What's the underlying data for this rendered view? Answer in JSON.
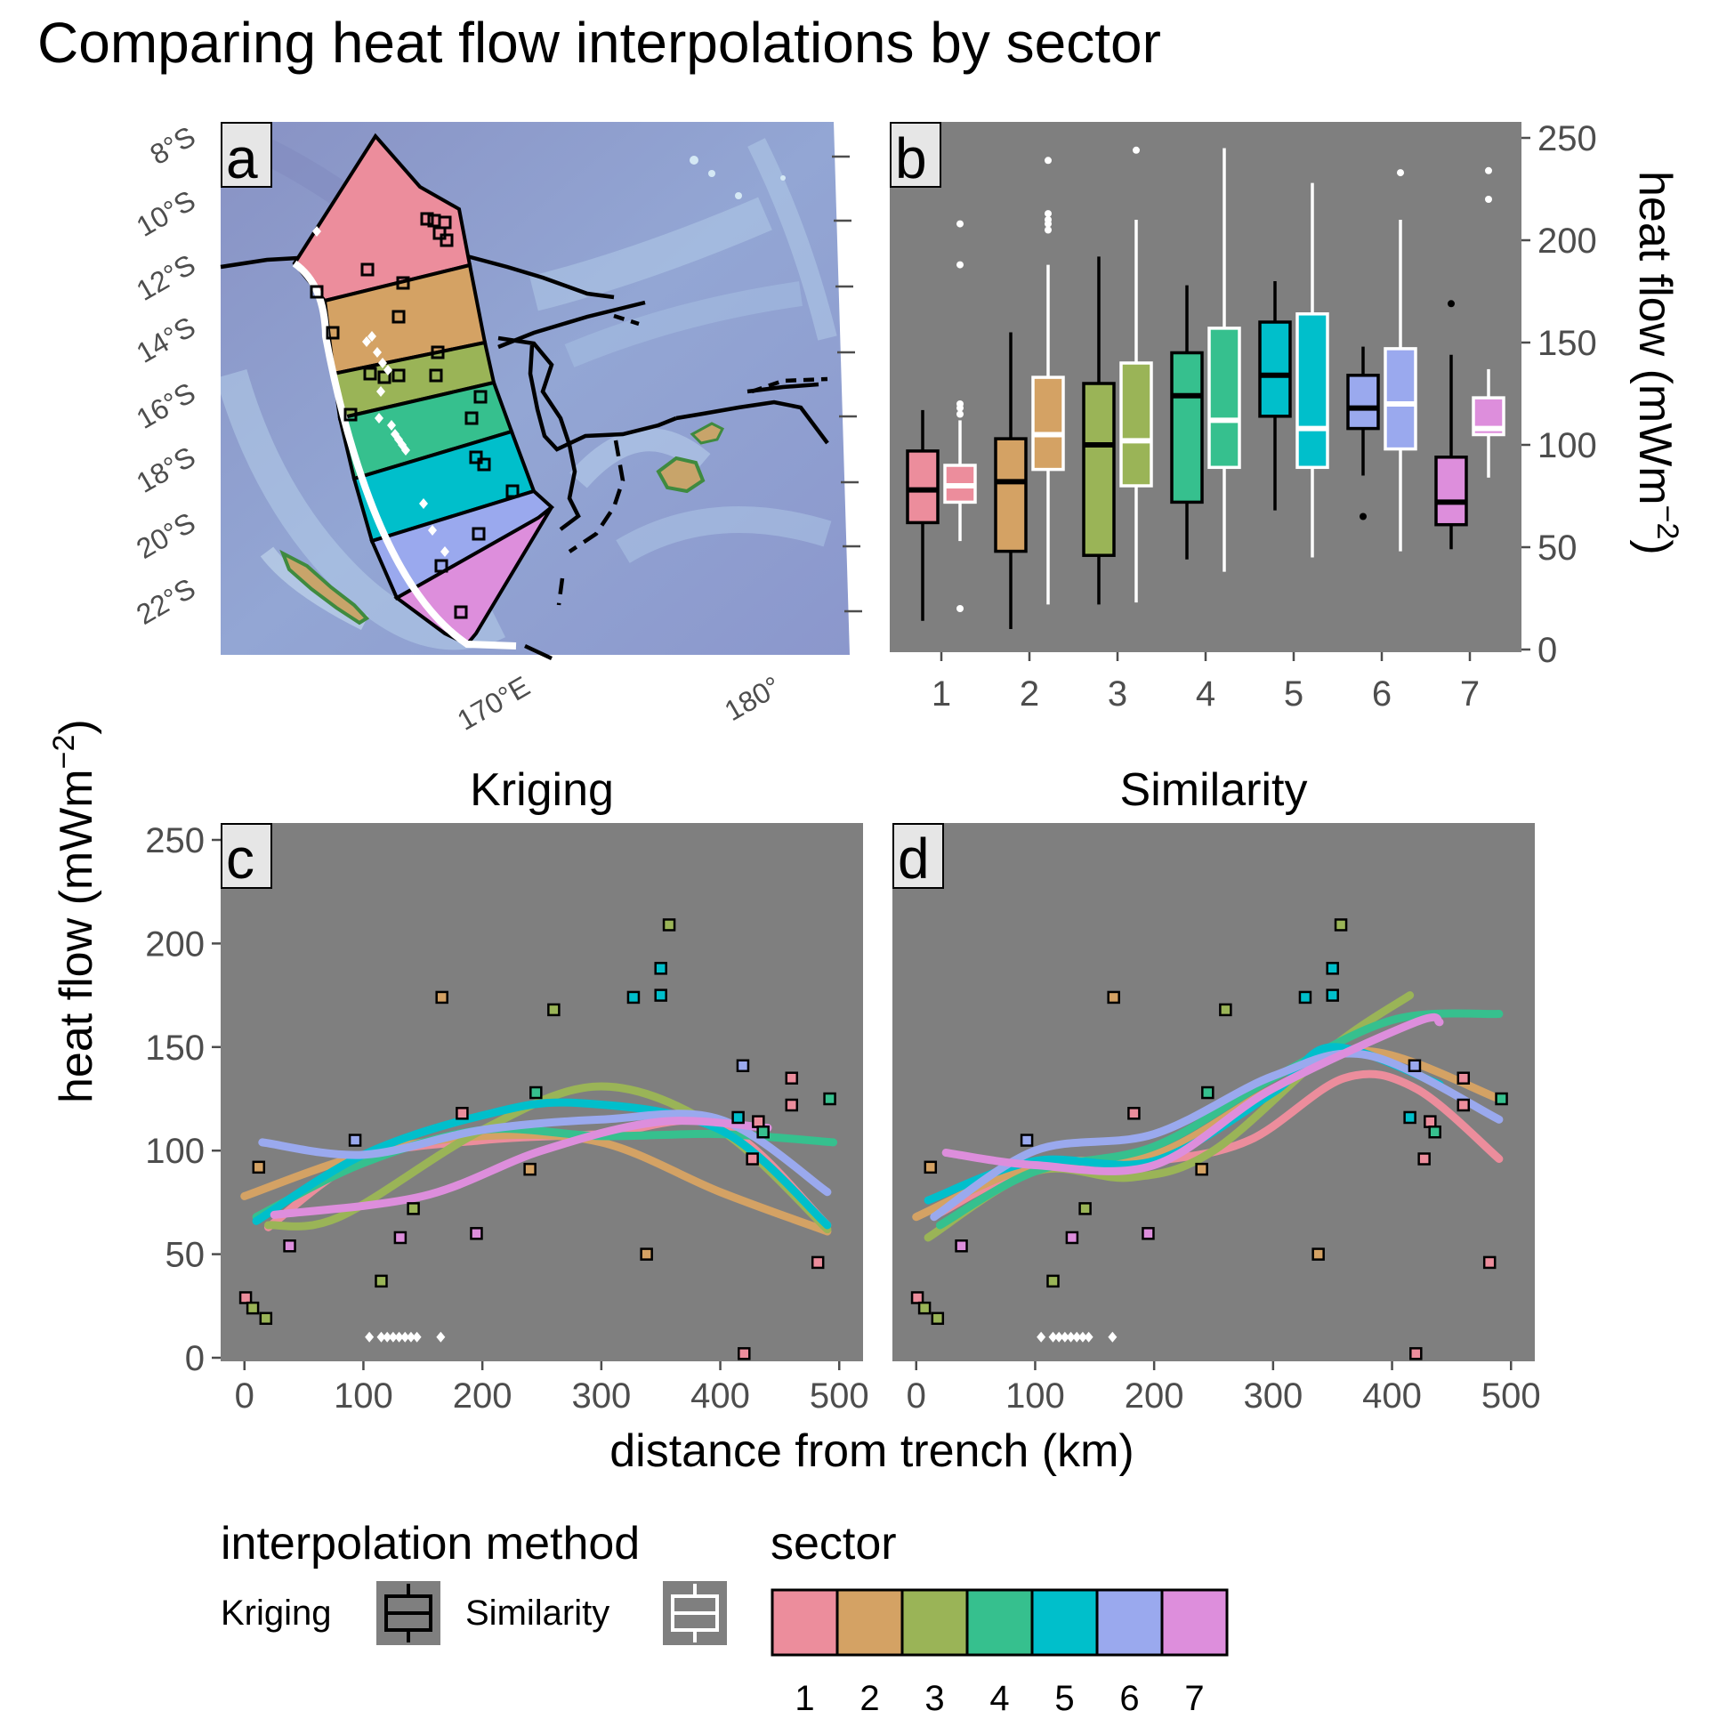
{
  "title": "Comparing heat flow interpolations by sector",
  "colors": {
    "panel_bg": "#7f7f7f",
    "sectors": [
      "#ec8d9c",
      "#d4a264",
      "#9ab457",
      "#36c08e",
      "#00bfcb",
      "#9aa9ee",
      "#dd8edc"
    ],
    "kriging_stroke": "#000000",
    "similarity_stroke": "#ffffff"
  },
  "map_panel": {
    "tag": "a",
    "lat_labels": [
      "8°S",
      "10°S",
      "12°S",
      "14°S",
      "16°S",
      "18°S",
      "20°S",
      "22°S"
    ],
    "lon_labels": [
      "170°E",
      "180°"
    ],
    "legend_icons": {
      "sector_polygon": "sector-polygon-icon",
      "site": "heat-flow-site-icon",
      "trench": "trench-line-icon"
    }
  },
  "chart_data": [
    {
      "panel": "b",
      "type": "box",
      "categories": [
        "1",
        "2",
        "3",
        "4",
        "5",
        "6",
        "7"
      ],
      "ylabel": "heat flow (mWm",
      "ylabel_sup": "−2",
      "ylabel_close": ")",
      "ylim": [
        0,
        250
      ],
      "yticks": [
        0,
        50,
        100,
        150,
        200,
        250
      ],
      "axis_side": "right",
      "series": [
        {
          "name": "Kriging",
          "boxes": [
            {
              "lower": 14,
              "q1": 62,
              "median": 78,
              "q3": 97,
              "upper": 117,
              "outliers": []
            },
            {
              "lower": 10,
              "q1": 48,
              "median": 82,
              "q3": 103,
              "upper": 155,
              "outliers": []
            },
            {
              "lower": 22,
              "q1": 46,
              "median": 100,
              "q3": 130,
              "upper": 192,
              "outliers": []
            },
            {
              "lower": 44,
              "q1": 72,
              "median": 124,
              "q3": 145,
              "upper": 178,
              "outliers": []
            },
            {
              "lower": 68,
              "q1": 114,
              "median": 134,
              "q3": 160,
              "upper": 180,
              "outliers": []
            },
            {
              "lower": 85,
              "q1": 108,
              "median": 118,
              "q3": 134,
              "upper": 148,
              "outliers": [
                65
              ]
            },
            {
              "lower": 49,
              "q1": 61,
              "median": 72,
              "q3": 94,
              "upper": 144,
              "outliers": [
                169
              ]
            }
          ]
        },
        {
          "name": "Similarity",
          "boxes": [
            {
              "lower": 53,
              "q1": 72,
              "median": 80,
              "q3": 90,
              "upper": 112,
              "outliers": [
                20,
                115,
                118,
                120,
                188,
                208
              ]
            },
            {
              "lower": 22,
              "q1": 88,
              "median": 105,
              "q3": 133,
              "upper": 188,
              "outliers": [
                205,
                208,
                210,
                213,
                239
              ]
            },
            {
              "lower": 23,
              "q1": 80,
              "median": 102,
              "q3": 140,
              "upper": 210,
              "outliers": [
                244
              ]
            },
            {
              "lower": 38,
              "q1": 89,
              "median": 112,
              "q3": 157,
              "upper": 245,
              "outliers": []
            },
            {
              "lower": 45,
              "q1": 89,
              "median": 108,
              "q3": 164,
              "upper": 228,
              "outliers": []
            },
            {
              "lower": 48,
              "q1": 98,
              "median": 120,
              "q3": 147,
              "upper": 210,
              "outliers": [
                233
              ]
            },
            {
              "lower": 84,
              "q1": 105,
              "median": 108,
              "q3": 123,
              "upper": 137,
              "outliers": [
                220,
                234
              ]
            }
          ]
        }
      ]
    },
    {
      "panel": "c",
      "type": "scatter+line",
      "facet_title": "Kriging",
      "xlim": [
        -20,
        520
      ],
      "ylim": [
        0,
        250
      ],
      "xticks": [
        0,
        100,
        200,
        300,
        400,
        500
      ],
      "yticks": [
        0,
        50,
        100,
        150,
        200,
        250
      ],
      "points": [
        {
          "x": 1,
          "y": 29,
          "sector": 1
        },
        {
          "x": 7,
          "y": 24,
          "sector": 3
        },
        {
          "x": 12,
          "y": 92,
          "sector": 2
        },
        {
          "x": 18,
          "y": 19,
          "sector": 3
        },
        {
          "x": 38,
          "y": 54,
          "sector": 7
        },
        {
          "x": 93,
          "y": 105,
          "sector": 6
        },
        {
          "x": 115,
          "y": 37,
          "sector": 3
        },
        {
          "x": 131,
          "y": 58,
          "sector": 7
        },
        {
          "x": 142,
          "y": 72,
          "sector": 3
        },
        {
          "x": 166,
          "y": 174,
          "sector": 2
        },
        {
          "x": 183,
          "y": 118,
          "sector": 1
        },
        {
          "x": 195,
          "y": 60,
          "sector": 7
        },
        {
          "x": 240,
          "y": 91,
          "sector": 2
        },
        {
          "x": 245,
          "y": 128,
          "sector": 4
        },
        {
          "x": 260,
          "y": 168,
          "sector": 3
        },
        {
          "x": 327,
          "y": 174,
          "sector": 5
        },
        {
          "x": 338,
          "y": 50,
          "sector": 2
        },
        {
          "x": 350,
          "y": 188,
          "sector": 5
        },
        {
          "x": 350,
          "y": 175,
          "sector": 5
        },
        {
          "x": 357,
          "y": 209,
          "sector": 3
        },
        {
          "x": 415,
          "y": 116,
          "sector": 5
        },
        {
          "x": 419,
          "y": 141,
          "sector": 6
        },
        {
          "x": 420,
          "y": 2,
          "sector": 1
        },
        {
          "x": 427,
          "y": 96,
          "sector": 1
        },
        {
          "x": 432,
          "y": 114,
          "sector": 1
        },
        {
          "x": 436,
          "y": 109,
          "sector": 4
        },
        {
          "x": 460,
          "y": 135,
          "sector": 1
        },
        {
          "x": 460,
          "y": 122,
          "sector": 1
        },
        {
          "x": 482,
          "y": 46,
          "sector": 1
        },
        {
          "x": 492,
          "y": 125,
          "sector": 4
        }
      ],
      "white_points": {
        "x": [
          105,
          115,
          120,
          125,
          130,
          135,
          140,
          145,
          165
        ],
        "y": 10
      },
      "series": [
        {
          "sector": 1,
          "x": [
            20,
            100,
            200,
            300,
            400,
            490
          ],
          "y": [
            63,
            96,
            105,
            108,
            112,
            64
          ]
        },
        {
          "sector": 2,
          "x": [
            0,
            100,
            200,
            300,
            400,
            490
          ],
          "y": [
            78,
            98,
            107,
            104,
            80,
            61
          ]
        },
        {
          "sector": 3,
          "x": [
            20,
            80,
            200,
            300,
            400,
            490
          ],
          "y": [
            64,
            68,
            110,
            131,
            110,
            62
          ]
        },
        {
          "sector": 4,
          "x": [
            10,
            100,
            200,
            300,
            400,
            495
          ],
          "y": [
            68,
            94,
            110,
            107,
            108,
            104
          ]
        },
        {
          "sector": 5,
          "x": [
            10,
            100,
            200,
            280,
            400,
            490
          ],
          "y": [
            66,
            98,
            117,
            123,
            110,
            64
          ]
        },
        {
          "sector": 6,
          "x": [
            15,
            100,
            200,
            300,
            400,
            490
          ],
          "y": [
            104,
            98,
            110,
            115,
            115,
            80
          ]
        },
        {
          "sector": 7,
          "x": [
            25,
            150,
            250,
            350,
            440
          ],
          "y": [
            69,
            78,
            100,
            114,
            111
          ]
        }
      ]
    },
    {
      "panel": "d",
      "type": "scatter+line",
      "facet_title": "Similarity",
      "xlim": [
        -20,
        520
      ],
      "ylim": [
        0,
        250
      ],
      "xticks": [
        0,
        100,
        200,
        300,
        400,
        500
      ],
      "yticks": [
        0,
        50,
        100,
        150,
        200,
        250
      ],
      "points": [
        {
          "x": 1,
          "y": 29,
          "sector": 1
        },
        {
          "x": 7,
          "y": 24,
          "sector": 3
        },
        {
          "x": 12,
          "y": 92,
          "sector": 2
        },
        {
          "x": 18,
          "y": 19,
          "sector": 3
        },
        {
          "x": 38,
          "y": 54,
          "sector": 7
        },
        {
          "x": 93,
          "y": 105,
          "sector": 6
        },
        {
          "x": 115,
          "y": 37,
          "sector": 3
        },
        {
          "x": 131,
          "y": 58,
          "sector": 7
        },
        {
          "x": 142,
          "y": 72,
          "sector": 3
        },
        {
          "x": 166,
          "y": 174,
          "sector": 2
        },
        {
          "x": 183,
          "y": 118,
          "sector": 1
        },
        {
          "x": 195,
          "y": 60,
          "sector": 7
        },
        {
          "x": 240,
          "y": 91,
          "sector": 2
        },
        {
          "x": 245,
          "y": 128,
          "sector": 4
        },
        {
          "x": 260,
          "y": 168,
          "sector": 3
        },
        {
          "x": 327,
          "y": 174,
          "sector": 5
        },
        {
          "x": 338,
          "y": 50,
          "sector": 2
        },
        {
          "x": 350,
          "y": 188,
          "sector": 5
        },
        {
          "x": 350,
          "y": 175,
          "sector": 5
        },
        {
          "x": 357,
          "y": 209,
          "sector": 3
        },
        {
          "x": 415,
          "y": 116,
          "sector": 5
        },
        {
          "x": 419,
          "y": 141,
          "sector": 6
        },
        {
          "x": 420,
          "y": 2,
          "sector": 1
        },
        {
          "x": 427,
          "y": 96,
          "sector": 1
        },
        {
          "x": 432,
          "y": 114,
          "sector": 1
        },
        {
          "x": 436,
          "y": 109,
          "sector": 4
        },
        {
          "x": 460,
          "y": 135,
          "sector": 1
        },
        {
          "x": 460,
          "y": 122,
          "sector": 1
        },
        {
          "x": 482,
          "y": 46,
          "sector": 1
        },
        {
          "x": 492,
          "y": 125,
          "sector": 4
        }
      ],
      "white_points": {
        "x": [
          105,
          115,
          120,
          125,
          130,
          135,
          140,
          145,
          165
        ],
        "y": 10
      },
      "series": [
        {
          "sector": 1,
          "x": [
            20,
            100,
            200,
            280,
            360,
            420,
            490
          ],
          "y": [
            70,
            92,
            95,
            105,
            135,
            130,
            96
          ]
        },
        {
          "sector": 2,
          "x": [
            0,
            100,
            200,
            300,
            380,
            490
          ],
          "y": [
            68,
            93,
            98,
            130,
            148,
            125
          ]
        },
        {
          "sector": 3,
          "x": [
            10,
            100,
            180,
            250,
            350,
            415
          ],
          "y": [
            58,
            90,
            87,
            100,
            150,
            175
          ]
        },
        {
          "sector": 4,
          "x": [
            20,
            100,
            200,
            300,
            400,
            490
          ],
          "y": [
            64,
            90,
            102,
            135,
            163,
            166
          ]
        },
        {
          "sector": 5,
          "x": [
            10,
            100,
            200,
            300,
            350,
            440
          ],
          "y": [
            76,
            95,
            95,
            128,
            150,
            132
          ]
        },
        {
          "sector": 6,
          "x": [
            15,
            100,
            200,
            300,
            380,
            490
          ],
          "y": [
            68,
            100,
            108,
            136,
            146,
            115
          ]
        },
        {
          "sector": 7,
          "x": [
            25,
            100,
            200,
            300,
            420,
            440
          ],
          "y": [
            99,
            93,
            93,
            130,
            162,
            162
          ]
        }
      ]
    }
  ],
  "axes": {
    "bottom_xlabel": "distance from trench (km)",
    "left_ylabel": "heat flow (mWm",
    "left_ylabel_sup": "−2",
    "left_ylabel_close": ")"
  },
  "legend": {
    "method_title": "interpolation method",
    "methods": [
      "Kriging",
      "Similarity"
    ],
    "sector_title": "sector",
    "sectors": [
      "1",
      "2",
      "3",
      "4",
      "5",
      "6",
      "7"
    ]
  }
}
